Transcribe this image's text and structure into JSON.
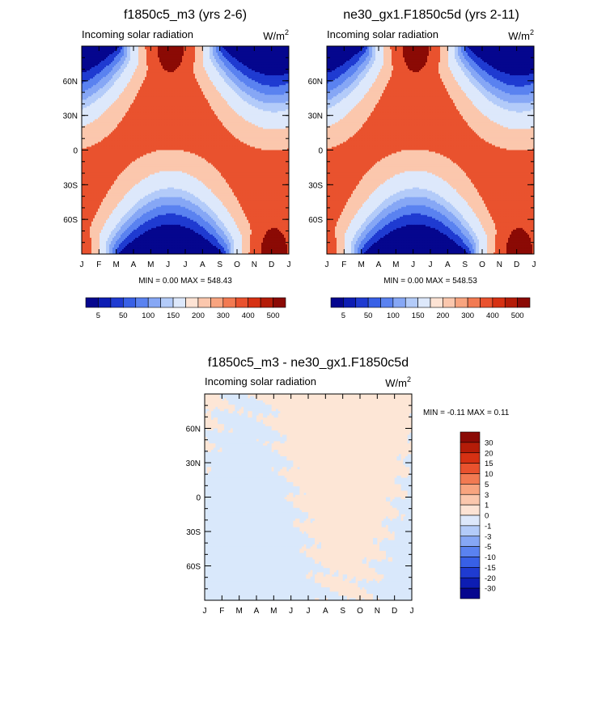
{
  "chart_data": [
    {
      "type": "heatmap",
      "panel": "top-left",
      "title": "f1850c5_m3 (yrs 2-6)",
      "subtitle": "Incoming solar radiation",
      "units": "W/m",
      "units_sup": "2",
      "x_ticks": [
        "J",
        "F",
        "M",
        "A",
        "M",
        "J",
        "J",
        "A",
        "S",
        "O",
        "N",
        "D",
        "J"
      ],
      "y_ticks": [
        "60N",
        "30N",
        "0",
        "30S",
        "60S"
      ],
      "y_tick_lat": [
        60,
        30,
        0,
        -30,
        -60
      ],
      "ylim": [
        -90,
        90
      ],
      "stats_text": "MIN =   0.00 MAX = 548.43",
      "min": 0.0,
      "max": 548.43,
      "field": "insolation",
      "levels": [
        5,
        50,
        100,
        150,
        200,
        300,
        400,
        500
      ],
      "colorbar_labels": [
        "5",
        "50",
        "100",
        "150",
        "200",
        "300",
        "400",
        "500"
      ]
    },
    {
      "type": "heatmap",
      "panel": "top-right",
      "title": "ne30_gx1.F1850c5d (yrs 2-11)",
      "subtitle": "Incoming solar radiation",
      "units": "W/m",
      "units_sup": "2",
      "x_ticks": [
        "J",
        "F",
        "M",
        "A",
        "M",
        "J",
        "J",
        "A",
        "S",
        "O",
        "N",
        "D",
        "J"
      ],
      "y_ticks": [
        "60N",
        "30N",
        "0",
        "30S",
        "60S"
      ],
      "y_tick_lat": [
        60,
        30,
        0,
        -30,
        -60
      ],
      "ylim": [
        -90,
        90
      ],
      "stats_text": "MIN =   0.00 MAX = 548.53",
      "min": 0.0,
      "max": 548.53,
      "field": "insolation",
      "levels": [
        5,
        50,
        100,
        150,
        200,
        300,
        400,
        500
      ],
      "colorbar_labels": [
        "5",
        "50",
        "100",
        "150",
        "200",
        "300",
        "400",
        "500"
      ]
    },
    {
      "type": "heatmap",
      "panel": "bottom",
      "title": "f1850c5_m3 - ne30_gx1.F1850c5d",
      "subtitle": "Incoming solar radiation",
      "units": "W/m",
      "units_sup": "2",
      "x_ticks": [
        "J",
        "F",
        "M",
        "A",
        "M",
        "J",
        "J",
        "A",
        "S",
        "O",
        "N",
        "D",
        "J"
      ],
      "y_ticks": [
        "60N",
        "30N",
        "0",
        "30S",
        "60S"
      ],
      "y_tick_lat": [
        60,
        30,
        0,
        -30,
        -60
      ],
      "ylim": [
        -90,
        90
      ],
      "stats_text": "MIN =  -0.11 MAX =   0.11",
      "min": -0.11,
      "max": 0.11,
      "field": "difference",
      "levels": [
        -30,
        -20,
        -15,
        -10,
        -5,
        -3,
        -1,
        0,
        1,
        3,
        5,
        10,
        15,
        20,
        30
      ],
      "colorbar_labels": [
        "30",
        "20",
        "15",
        "10",
        "5",
        "3",
        "1",
        "0",
        "-1",
        "-3",
        "-5",
        "-10",
        "-15",
        "-20",
        "-30"
      ]
    }
  ],
  "colors": {
    "abs_palette": [
      "#05068e",
      "#0d1db3",
      "#1f3bd1",
      "#3860e6",
      "#5a82f0",
      "#86a7f5",
      "#b3cbf9",
      "#dde8fb",
      "#fde3d4",
      "#fbc7ad",
      "#f8a47f",
      "#f27a52",
      "#e9522e",
      "#d63113",
      "#b41c08",
      "#8b0a05"
    ],
    "diff_palette": [
      "#8b0a05",
      "#b41c08",
      "#d63113",
      "#e9522e",
      "#f27a52",
      "#f8a47f",
      "#fbc7ad",
      "#fde3d4",
      "#dde8fb",
      "#b3cbf9",
      "#86a7f5",
      "#5a82f0",
      "#3860e6",
      "#1f3bd1",
      "#0d1db3",
      "#05068e"
    ],
    "diff_positive": "#fde6d6",
    "diff_negative": "#d9e8fb"
  }
}
